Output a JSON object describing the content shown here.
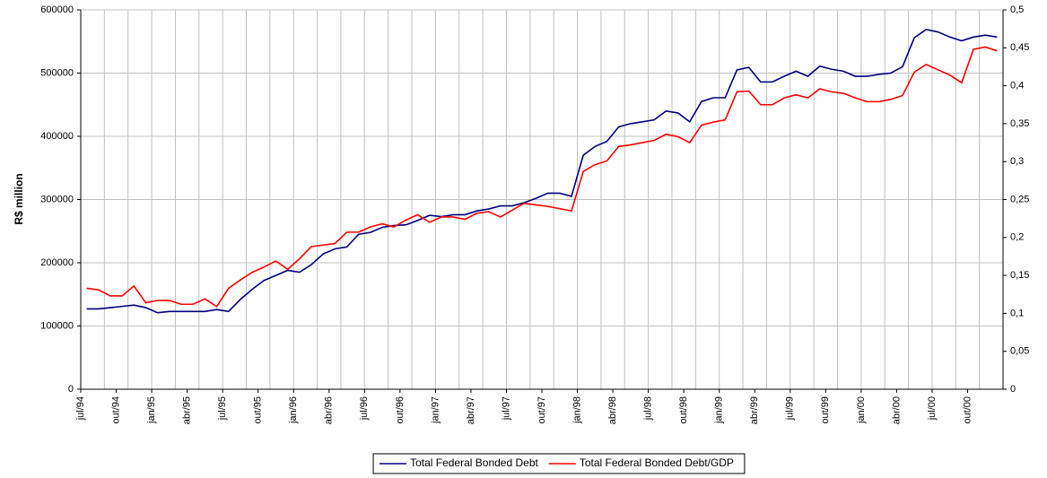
{
  "chart_data": {
    "type": "line",
    "y_label": "R$ million",
    "categories": [
      "jul/94",
      null,
      null,
      "out/94",
      null,
      null,
      "jan/95",
      null,
      null,
      "abr/95",
      null,
      null,
      "jul/95",
      null,
      null,
      "out/95",
      null,
      null,
      "jan/96",
      null,
      null,
      "abr/96",
      null,
      null,
      "jul/96",
      null,
      null,
      "out/96",
      null,
      null,
      "jan/97",
      null,
      null,
      "abr/97",
      null,
      null,
      "jul/97",
      null,
      null,
      "out/97",
      null,
      null,
      "jan/98",
      null,
      null,
      "abr/98",
      null,
      null,
      "jul/98",
      null,
      null,
      "out/98",
      null,
      null,
      "jan/99",
      null,
      null,
      "abr/99",
      null,
      null,
      "jul/99",
      null,
      null,
      "out/99",
      null,
      null,
      "jan/00",
      null,
      null,
      "abr/00",
      null,
      null,
      "jul/00",
      null,
      null,
      "out/00",
      null,
      null
    ],
    "series": [
      {
        "name": "Total Federal Bonded Debt",
        "color": "#000080",
        "values": [
          127000,
          127000,
          129000,
          131000,
          133000,
          129000,
          121000,
          123000,
          123000,
          123000,
          123000,
          126000,
          123000,
          142000,
          158000,
          172000,
          180000,
          188000,
          185000,
          197000,
          214000,
          222000,
          225000,
          245000,
          248000,
          256000,
          259000,
          260000,
          267000,
          275000,
          273000,
          276000,
          276000,
          282000,
          285000,
          290000,
          290000,
          295000,
          302000,
          310000,
          310000,
          305000,
          370000,
          384000,
          392000,
          415000,
          420000,
          423000,
          426000,
          440000,
          437000,
          423000,
          455000,
          461000,
          461000,
          505000,
          509000,
          486000,
          486000,
          495000,
          503000,
          495000,
          511000,
          506000,
          503000,
          495000,
          495000,
          498000,
          500000,
          510000,
          556000,
          569000,
          565000,
          557000,
          551000,
          557000,
          560000,
          557000
        ]
      },
      {
        "name": "Total Federal Bonded Debt/GDP",
        "color": "#ff0000",
        "axis": "y2",
        "values": [
          0.133,
          0.131,
          0.123,
          0.123,
          0.136,
          0.114,
          0.117,
          0.117,
          0.112,
          0.112,
          0.119,
          0.109,
          0.133,
          0.144,
          0.154,
          0.161,
          0.169,
          0.158,
          0.172,
          0.188,
          0.19,
          0.192,
          0.207,
          0.207,
          0.214,
          0.218,
          0.214,
          0.223,
          0.23,
          0.22,
          0.227,
          0.227,
          0.224,
          0.232,
          0.234,
          0.227,
          0.236,
          0.245,
          0.243,
          0.241,
          0.238,
          0.235,
          0.287,
          0.296,
          0.301,
          0.32,
          0.322,
          0.325,
          0.328,
          0.336,
          0.333,
          0.325,
          0.348,
          0.352,
          0.355,
          0.392,
          0.393,
          0.375,
          0.375,
          0.384,
          0.388,
          0.384,
          0.396,
          0.392,
          0.39,
          0.384,
          0.379,
          0.379,
          0.382,
          0.387,
          0.418,
          0.428,
          0.421,
          0.414,
          0.404,
          0.448,
          0.451,
          0.446
        ]
      }
    ],
    "ylim": [
      0,
      600000
    ],
    "yticks": [
      0,
      100000,
      200000,
      300000,
      400000,
      500000,
      600000
    ],
    "y2lim": [
      0,
      0.5
    ],
    "y2ticks": [
      0,
      {
        "value": 0.05,
        "label": "0,05"
      },
      {
        "value": 0.1,
        "label": "0,1"
      },
      {
        "value": 0.15,
        "label": "0,15"
      },
      {
        "value": 0.2,
        "label": "0,2"
      },
      {
        "value": 0.25,
        "label": "0,25"
      },
      {
        "value": 0.3,
        "label": "0,3"
      },
      {
        "value": 0.35,
        "label": "0,35"
      },
      {
        "value": 0.4,
        "label": "0,4"
      },
      {
        "value": 0.45,
        "label": "0,45"
      },
      {
        "value": 0.5,
        "label": "0,5"
      }
    ],
    "grid": true,
    "legend": "bottom"
  }
}
